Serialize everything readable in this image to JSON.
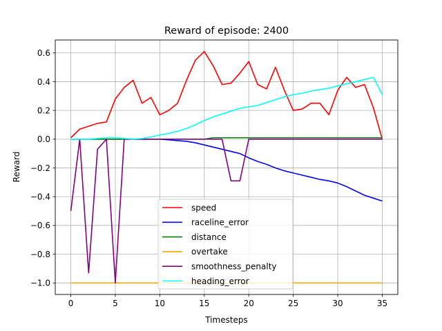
{
  "chart_data": {
    "type": "line",
    "title": "Reward of episode: 2400",
    "xlabel": "Timesteps",
    "ylabel": "Reward",
    "xlim": [
      -1.75,
      36.75
    ],
    "ylim": [
      -1.08,
      0.69
    ],
    "xticks": [
      0,
      5,
      10,
      15,
      20,
      25,
      30,
      35
    ],
    "yticks": [
      -1.0,
      -0.8,
      -0.6,
      -0.4,
      -0.2,
      0.0,
      0.2,
      0.4,
      0.6
    ],
    "ytick_labels": [
      "−1.0",
      "−0.8",
      "−0.6",
      "−0.4",
      "−0.2",
      "0.0",
      "0.2",
      "0.4",
      "0.6"
    ],
    "grid": true,
    "legend_position": "lower-center",
    "x": [
      0,
      1,
      2,
      3,
      4,
      5,
      6,
      7,
      8,
      9,
      10,
      11,
      12,
      13,
      14,
      15,
      16,
      17,
      18,
      19,
      20,
      21,
      22,
      23,
      24,
      25,
      26,
      27,
      28,
      29,
      30,
      31,
      32,
      33,
      34,
      35
    ],
    "series": [
      {
        "name": "speed",
        "color": "#ff0000",
        "values": [
          0.01,
          0.07,
          0.09,
          0.11,
          0.12,
          0.28,
          0.36,
          0.41,
          0.25,
          0.29,
          0.17,
          0.2,
          0.25,
          0.41,
          0.55,
          0.61,
          0.51,
          0.38,
          0.39,
          0.46,
          0.54,
          0.38,
          0.35,
          0.5,
          0.34,
          0.2,
          0.21,
          0.25,
          0.25,
          0.17,
          0.34,
          0.43,
          0.36,
          0.38,
          0.22,
          0.0
        ]
      },
      {
        "name": "raceline_error",
        "color": "#0000ff",
        "values": [
          0.0,
          0.0,
          0.0,
          0.0,
          0.0,
          0.0,
          0.0,
          0.0,
          0.0,
          0.0,
          0.0,
          -0.005,
          -0.01,
          -0.015,
          -0.025,
          -0.04,
          -0.055,
          -0.07,
          -0.085,
          -0.1,
          -0.13,
          -0.155,
          -0.175,
          -0.2,
          -0.22,
          -0.235,
          -0.25,
          -0.265,
          -0.28,
          -0.29,
          -0.305,
          -0.33,
          -0.36,
          -0.39,
          -0.41,
          -0.43
        ]
      },
      {
        "name": "distance",
        "color": "#008000",
        "values": [
          0.0,
          0.0,
          0.0,
          0.0,
          0.0,
          0.0,
          0.0,
          0.0,
          0.0,
          0.0,
          0.0,
          0.0,
          0.0,
          0.0,
          0.0,
          0.0,
          0.01,
          0.01,
          0.01,
          0.01,
          0.01,
          0.01,
          0.01,
          0.01,
          0.01,
          0.01,
          0.01,
          0.01,
          0.01,
          0.01,
          0.01,
          0.01,
          0.01,
          0.01,
          0.01,
          0.01
        ]
      },
      {
        "name": "overtake",
        "color": "#ffa500",
        "values": [
          -1.0,
          -1.0,
          -1.0,
          -1.0,
          -1.0,
          -1.0,
          -1.0,
          -1.0,
          -1.0,
          -1.0,
          -1.0,
          -1.0,
          -1.0,
          -1.0,
          -1.0,
          -1.0,
          -1.0,
          -1.0,
          -1.0,
          -1.0,
          -1.0,
          -1.0,
          -1.0,
          -1.0,
          -1.0,
          -1.0,
          -1.0,
          -1.0,
          -1.0,
          -1.0,
          -1.0,
          -1.0,
          -1.0,
          -1.0,
          -1.0,
          -1.0
        ]
      },
      {
        "name": "smoothness_penalty",
        "color": "#800080",
        "values": [
          -0.5,
          0.0,
          -0.93,
          -0.07,
          0.0,
          -1.0,
          0.0,
          0.0,
          0.0,
          0.0,
          0.0,
          0.0,
          0.0,
          0.0,
          0.0,
          0.0,
          0.0,
          0.0,
          -0.29,
          -0.29,
          0.0,
          0.0,
          0.0,
          0.0,
          0.0,
          0.0,
          0.0,
          0.0,
          0.0,
          0.0,
          0.0,
          0.0,
          0.0,
          0.0,
          0.0,
          0.0
        ]
      },
      {
        "name": "heading_error",
        "color": "#00ffff",
        "values": [
          0.0,
          0.0,
          0.0,
          0.005,
          0.01,
          0.01,
          0.005,
          0.0,
          0.005,
          0.015,
          0.03,
          0.04,
          0.055,
          0.075,
          0.1,
          0.13,
          0.155,
          0.175,
          0.195,
          0.215,
          0.225,
          0.235,
          0.255,
          0.275,
          0.295,
          0.31,
          0.32,
          0.335,
          0.345,
          0.355,
          0.37,
          0.385,
          0.4,
          0.415,
          0.43,
          0.31
        ]
      }
    ]
  }
}
